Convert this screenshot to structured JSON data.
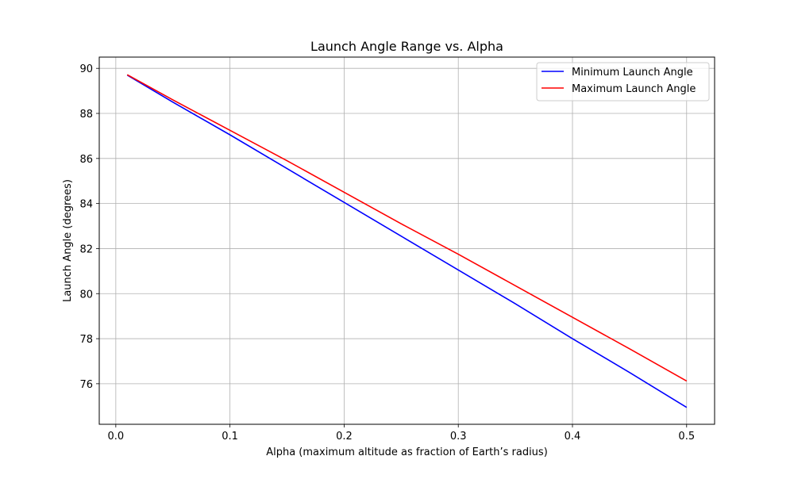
{
  "chart_data": {
    "type": "line",
    "title": "Launch Angle Range vs. Alpha",
    "xlabel": "Alpha (maximum altitude as fraction of Earth’s radius)",
    "ylabel": "Launch Angle (degrees)",
    "xlim": [
      -0.0145,
      0.5245
    ],
    "ylim": [
      74.2,
      90.5
    ],
    "xticks": [
      0.0,
      0.1,
      0.2,
      0.3,
      0.4,
      0.5
    ],
    "xtick_labels": [
      "0.0",
      "0.1",
      "0.2",
      "0.3",
      "0.4",
      "0.5"
    ],
    "yticks": [
      76,
      78,
      80,
      82,
      84,
      86,
      88,
      90
    ],
    "ytick_labels": [
      "76",
      "78",
      "80",
      "82",
      "84",
      "86",
      "88",
      "90"
    ],
    "grid": true,
    "legend_position": "top-right",
    "x": [
      0.01,
      0.05,
      0.1,
      0.15,
      0.2,
      0.25,
      0.3,
      0.35,
      0.4,
      0.45,
      0.5
    ],
    "series": [
      {
        "name": "Minimum Launch Angle",
        "color": "#0000ff",
        "values": [
          89.7,
          88.5,
          87.05,
          85.55,
          84.05,
          82.55,
          81.05,
          79.55,
          78.0,
          76.5,
          74.95
        ]
      },
      {
        "name": "Maximum Launch Angle",
        "color": "#ff0000",
        "values": [
          89.72,
          88.6,
          87.25,
          85.9,
          84.5,
          83.1,
          81.75,
          80.35,
          78.95,
          77.55,
          76.12
        ]
      }
    ]
  }
}
